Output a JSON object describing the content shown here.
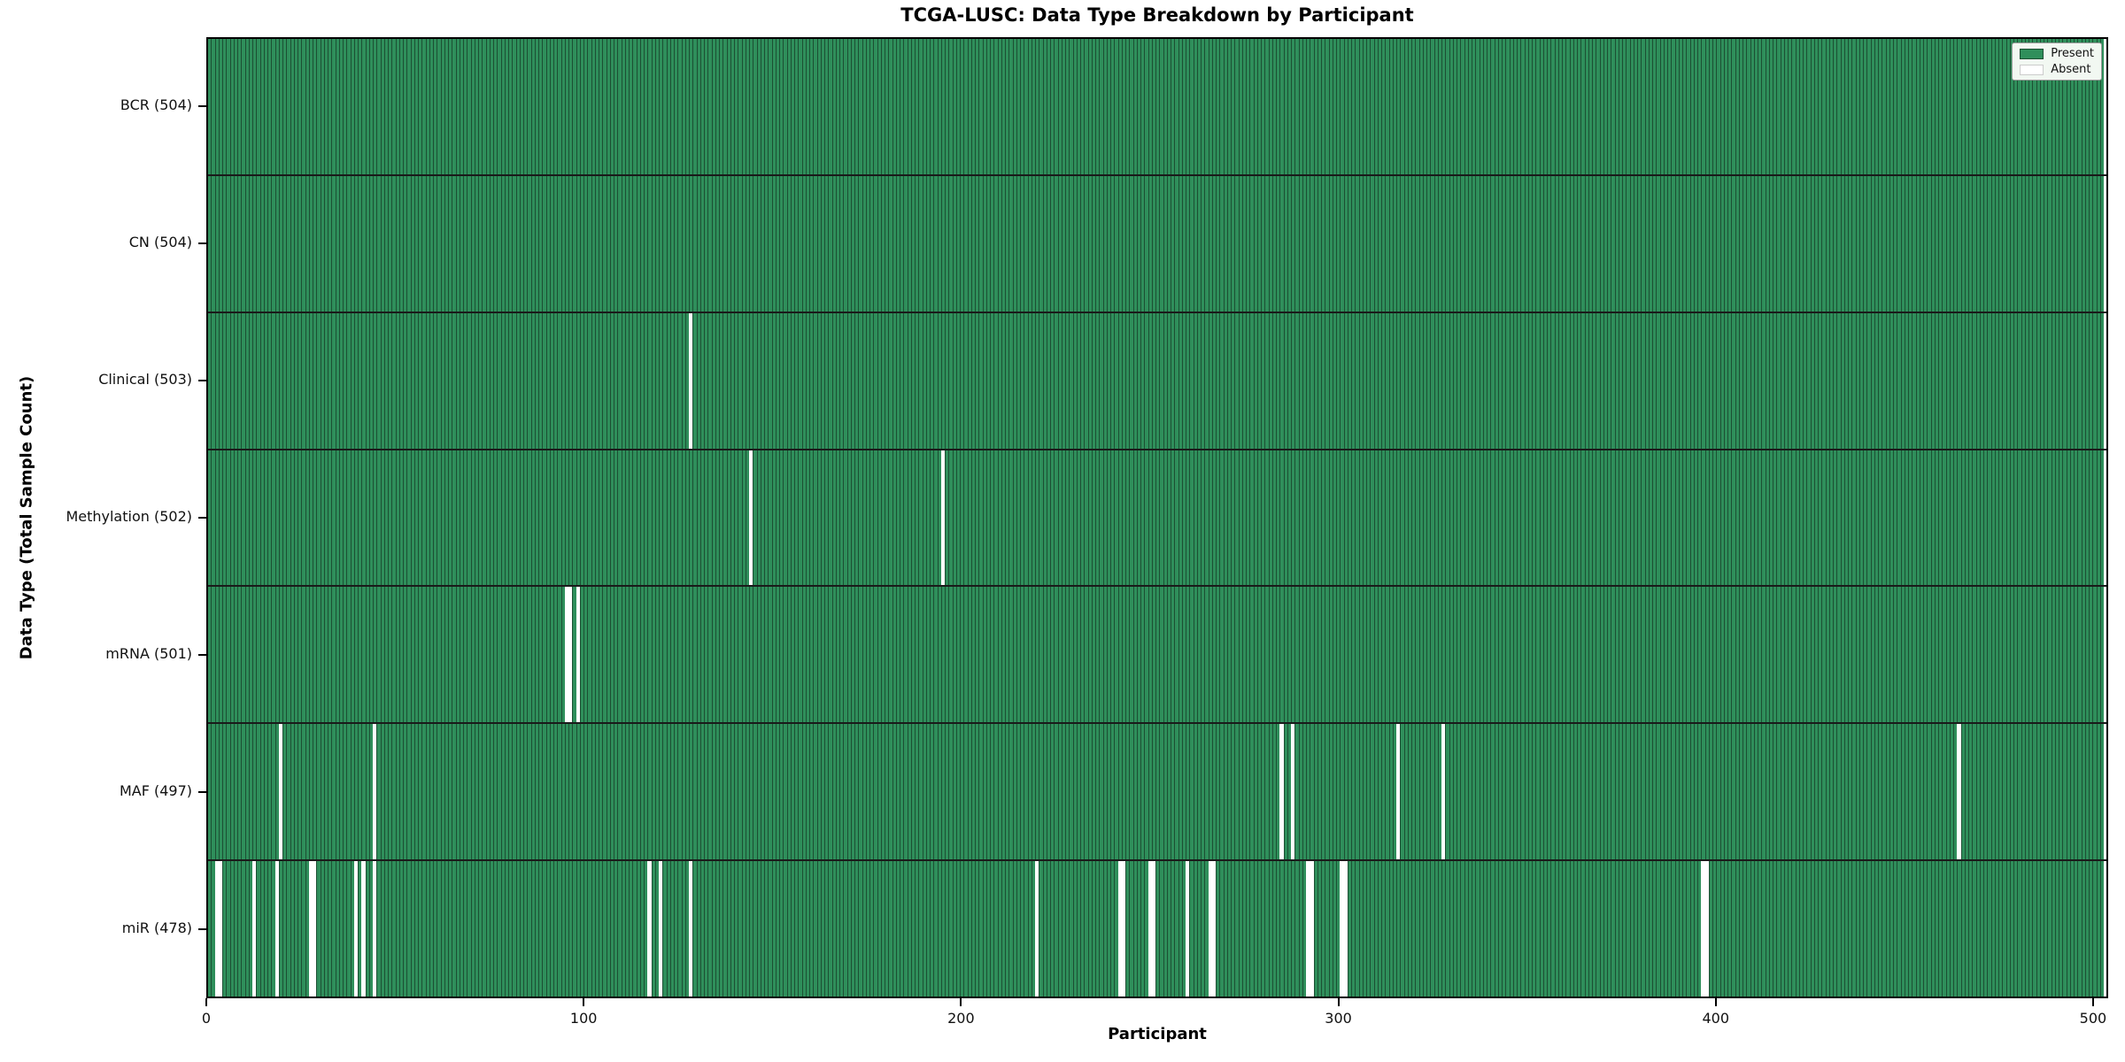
{
  "title": "TCGA-LUSC: Data Type Breakdown by Participant",
  "xlabel": "Participant",
  "ylabel": "Data Type (Total Sample Count)",
  "legend": {
    "present_label": "Present",
    "absent_label": "Absent"
  },
  "colors": {
    "present": "#2f8f5b",
    "absent": "#ffffff",
    "bar_edge": "#1c4f33",
    "row_divider": "#1a1a1a",
    "frame": "#000000",
    "legend_bg": "#f2f8f2",
    "legend_border": "#999999",
    "text": "#111111"
  },
  "chart_data": {
    "type": "heatmap",
    "subtype": "presence-absence-matrix",
    "x": {
      "label": "Participant",
      "lim": [
        0,
        504
      ],
      "ticks": [
        0,
        100,
        200,
        300,
        400,
        500
      ]
    },
    "n_participants": 504,
    "legend_entries": [
      "Present",
      "Absent"
    ],
    "legend_position": "upper right",
    "grid": "row-dividers-only",
    "rows": [
      {
        "name": "BCR",
        "label": "BCR (504)",
        "total": 504,
        "absent": []
      },
      {
        "name": "CN",
        "label": "CN (504)",
        "total": 504,
        "absent": []
      },
      {
        "name": "Clinical",
        "label": "Clinical (503)",
        "total": 503,
        "absent": [
          129
        ]
      },
      {
        "name": "Methylation",
        "label": "Methylation (502)",
        "total": 502,
        "absent": [
          145,
          196
        ]
      },
      {
        "name": "mRNA",
        "label": "mRNA (501)",
        "total": 501,
        "absent": [
          96,
          97,
          99
        ]
      },
      {
        "name": "MAF",
        "label": "MAF (497)",
        "total": 497,
        "absent": [
          20,
          45,
          286,
          289,
          317,
          329,
          466
        ]
      },
      {
        "name": "miR",
        "label": "miR (478)",
        "total": 478,
        "absent": [
          3,
          4,
          13,
          19,
          28,
          29,
          40,
          42,
          45,
          118,
          121,
          129,
          221,
          243,
          244,
          251,
          252,
          261,
          267,
          268,
          293,
          294,
          302,
          303,
          398,
          399
        ]
      }
    ]
  }
}
